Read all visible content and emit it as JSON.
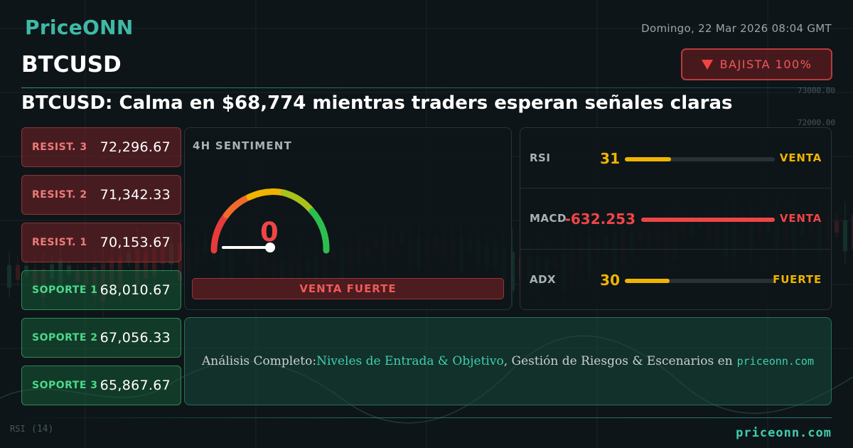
{
  "brand": {
    "logo": "PriceONN"
  },
  "header": {
    "datetime": "Domingo, 22 Mar 2026 08:04 GMT",
    "symbol": "BTCUSD",
    "trend_label": "BAJISTA 100%",
    "headline": "BTCUSD: Calma en $68,774 mientras traders esperan señales claras"
  },
  "levels": [
    {
      "type": "resistance",
      "label": "RESIST. 3",
      "value": "72,296.67"
    },
    {
      "type": "resistance",
      "label": "RESIST. 2",
      "value": "71,342.33"
    },
    {
      "type": "resistance",
      "label": "RESIST. 1",
      "value": "70,153.67"
    },
    {
      "type": "support",
      "label": "SOPORTE 1",
      "value": "68,010.67"
    },
    {
      "type": "support",
      "label": "SOPORTE 2",
      "value": "67,056.33"
    },
    {
      "type": "support",
      "label": "SOPORTE 3",
      "value": "65,867.67"
    }
  ],
  "sentiment": {
    "title": "4H SENTIMENT",
    "value": "0",
    "signal": "VENTA FUERTE"
  },
  "indicators": [
    {
      "name": "RSI",
      "value": "31",
      "verdict": "VENTA",
      "level_pct": 31,
      "color": "#f0b400"
    },
    {
      "name": "MACD",
      "value": "-632.253",
      "verdict": "VENTA",
      "level_pct": 100,
      "color": "#ef4545"
    },
    {
      "name": "ADX",
      "value": "30",
      "verdict": "FUERTE",
      "level_pct": 30,
      "color": "#f0b400"
    }
  ],
  "cta": {
    "prefix": "Análisis Completo: ",
    "highlight": "Niveles de Entrada & Objetivo",
    "middle": ", Gestión de Riesgos & Escenarios en ",
    "site": "priceonn.com"
  },
  "footer": {
    "url": "priceonn.com"
  },
  "background": {
    "axis_labels": [
      "73000.00",
      "72000.00"
    ],
    "indicator_label": "RSI",
    "indicator_param": "(14)"
  },
  "colors": {
    "accent": "#3fb9a6",
    "bearish": "#ef4545",
    "bullish": "#4ad98a",
    "neutral": "#f0b400"
  }
}
